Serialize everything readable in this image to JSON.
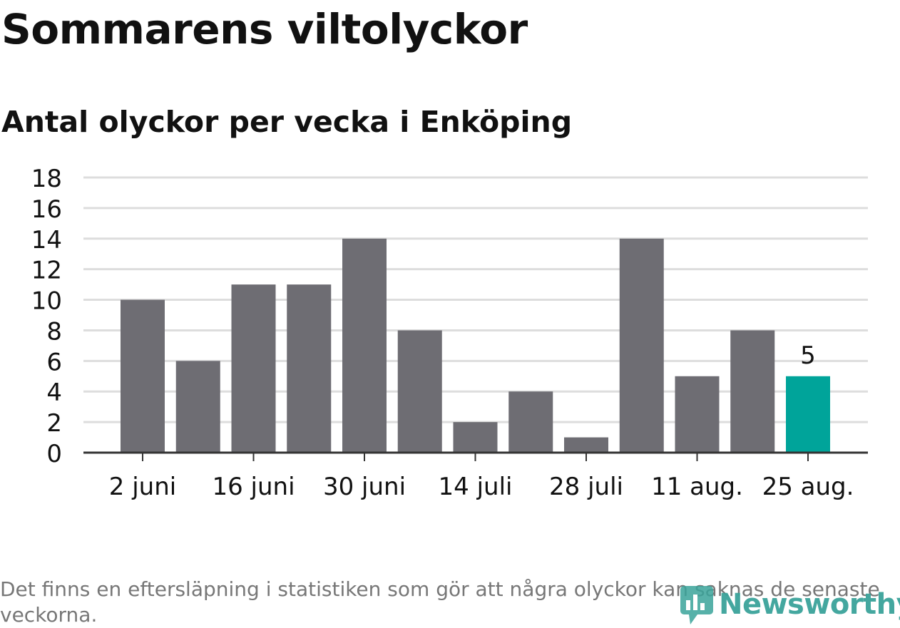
{
  "header": {
    "title": "Sommarens viltolyckor",
    "subtitle": "Antal olyckor per vecka i Enköping"
  },
  "footer": {
    "note": "Det finns en eftersläpning i statistiken som gör att några olyckor kan saknas de senaste veckorna.",
    "logo_text": "Newsworthy",
    "logo_icon": "newsworthy-logo-icon"
  },
  "colors": {
    "bar": "#6e6d73",
    "highlight": "#00a49a",
    "grid": "#dddddd",
    "axis": "#333333",
    "text": "#111111",
    "note": "#777777"
  },
  "chart_data": {
    "type": "bar",
    "categories": [
      "2 juni",
      "",
      "16 juni",
      "",
      "30 juni",
      "",
      "14 juli",
      "",
      "28 juli",
      "",
      "11 aug.",
      "",
      "25 aug."
    ],
    "values": [
      10,
      6,
      11,
      11,
      14,
      8,
      2,
      4,
      1,
      14,
      5,
      8,
      5
    ],
    "highlight_index": 12,
    "data_labels": [
      {
        "index": 12,
        "text": "5"
      }
    ],
    "title": "Sommarens viltolyckor",
    "subtitle": "Antal olyckor per vecka i Enköping",
    "ylim": [
      0,
      18
    ],
    "yticks": [
      0,
      2,
      4,
      6,
      8,
      10,
      12,
      14,
      16,
      18
    ],
    "grid": true
  }
}
